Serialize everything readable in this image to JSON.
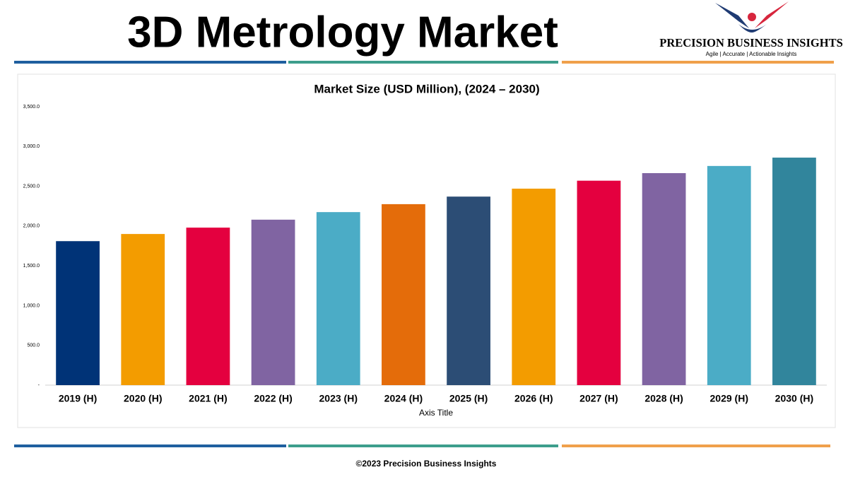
{
  "header": {
    "title": "3D Metrology Market",
    "brand": "PRECISION BUSINESS INSIGHTS",
    "tagline": "Agile | Accurate | Actionable Insights"
  },
  "chart_data": {
    "type": "bar",
    "title": "Market Size (USD Million), (2024 – 2030)",
    "x_label": "Axis Title",
    "categories": [
      "2019 (H)",
      "2020 (H)",
      "2021 (H)",
      "2022 (H)",
      "2023 (H)",
      "2024 (H)",
      "2025 (H)",
      "2026 (H)",
      "2027 (H)",
      "2028 (H)",
      "2029 (H)",
      "2030 (H)"
    ],
    "values": [
      1810,
      1900,
      1980,
      2080,
      2175,
      2275,
      2370,
      2470,
      2570,
      2665,
      2755,
      2860
    ],
    "colors": [
      "#003377",
      "#f39c00",
      "#e4003f",
      "#8064a2",
      "#4bacc6",
      "#e46c0a",
      "#2c4d75",
      "#f39c00",
      "#e4003f",
      "#8064a2",
      "#4bacc6",
      "#31859c"
    ],
    "ylim": [
      0,
      3500
    ],
    "yticks": [
      {
        "value": 0,
        "label": "-"
      },
      {
        "value": 500,
        "label": "500.0"
      },
      {
        "value": 1000,
        "label": "1,000.0"
      },
      {
        "value": 1500,
        "label": "1,500.0"
      },
      {
        "value": 2000,
        "label": "2,000.0"
      },
      {
        "value": 2500,
        "label": "2,500.0"
      },
      {
        "value": 3000,
        "label": "3,000.0"
      },
      {
        "value": 3500,
        "label": "3,500.0"
      }
    ],
    "grid": false
  },
  "footer": {
    "text": "©2023 Precision Business Insights"
  }
}
